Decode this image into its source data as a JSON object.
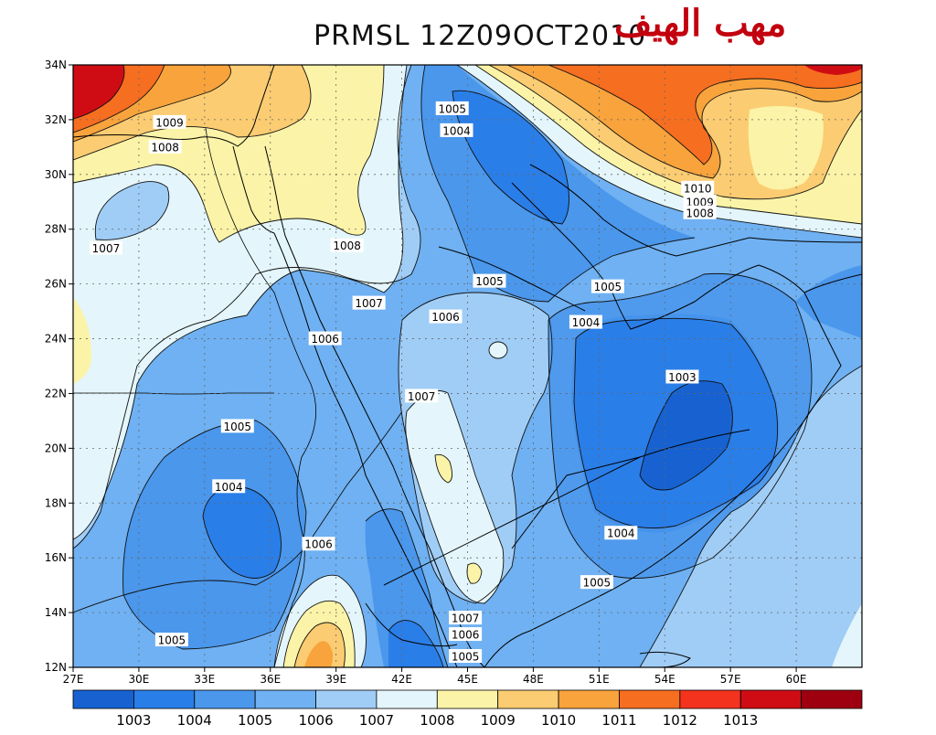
{
  "title": "PRMSL  12Z09OCT2010",
  "watermark": "مهب الهيف",
  "map": {
    "variable": "PRMSL",
    "units": "hPa",
    "lon_range": [
      27,
      63
    ],
    "lat_range": [
      12,
      34
    ],
    "lon_ticks": [
      "27E",
      "30E",
      "33E",
      "36E",
      "39E",
      "42E",
      "45E",
      "48E",
      "51E",
      "54E",
      "57E",
      "60E"
    ],
    "lat_ticks": [
      "12N",
      "14N",
      "16N",
      "18N",
      "20N",
      "22N",
      "24N",
      "26N",
      "28N",
      "30N",
      "32N",
      "34N"
    ],
    "grid": "dotted"
  },
  "colorbar": {
    "boundaries": [
      "1003",
      "1004",
      "1005",
      "1006",
      "1007",
      "1008",
      "1009",
      "1010",
      "1011",
      "1012",
      "1013"
    ],
    "colors": [
      "#1762d0",
      "#2a7ee8",
      "#4a97ec",
      "#6fb1f2",
      "#a0cdf6",
      "#e4f6fb",
      "#fbf3a7",
      "#fbcc72",
      "#f8a33c",
      "#f66e20",
      "#f3331e",
      "#cf0c14",
      "#9e0010"
    ]
  },
  "contour_labels": [
    {
      "text": "1009",
      "lon": 31.4,
      "lat": 31.9
    },
    {
      "text": "1008",
      "lon": 31.2,
      "lat": 31.0
    },
    {
      "text": "1007",
      "lon": 28.5,
      "lat": 27.3
    },
    {
      "text": "1008",
      "lon": 39.5,
      "lat": 27.4
    },
    {
      "text": "1007",
      "lon": 40.5,
      "lat": 25.3
    },
    {
      "text": "1006",
      "lon": 38.5,
      "lat": 24.0
    },
    {
      "text": "1005",
      "lon": 44.3,
      "lat": 32.4
    },
    {
      "text": "1004",
      "lon": 44.5,
      "lat": 31.6
    },
    {
      "text": "1005",
      "lon": 46.0,
      "lat": 26.1
    },
    {
      "text": "1006",
      "lon": 44.0,
      "lat": 24.8
    },
    {
      "text": "1007",
      "lon": 42.9,
      "lat": 21.9
    },
    {
      "text": "1005",
      "lon": 51.4,
      "lat": 25.9
    },
    {
      "text": "1004",
      "lon": 50.4,
      "lat": 24.6
    },
    {
      "text": "1003",
      "lon": 54.8,
      "lat": 22.6
    },
    {
      "text": "1010",
      "lon": 55.5,
      "lat": 29.5
    },
    {
      "text": "1009",
      "lon": 55.6,
      "lat": 29.0
    },
    {
      "text": "1008",
      "lon": 55.6,
      "lat": 28.6
    },
    {
      "text": "1005",
      "lon": 34.5,
      "lat": 20.8
    },
    {
      "text": "1004",
      "lon": 34.1,
      "lat": 18.6
    },
    {
      "text": "1006",
      "lon": 38.2,
      "lat": 16.5
    },
    {
      "text": "1004",
      "lon": 52.0,
      "lat": 16.9
    },
    {
      "text": "1005",
      "lon": 50.9,
      "lat": 15.1
    },
    {
      "text": "1005",
      "lon": 31.5,
      "lat": 13.0
    },
    {
      "text": "1007",
      "lon": 44.9,
      "lat": 13.8
    },
    {
      "text": "1006",
      "lon": 44.9,
      "lat": 13.2
    },
    {
      "text": "1005",
      "lon": 44.9,
      "lat": 12.4
    }
  ]
}
